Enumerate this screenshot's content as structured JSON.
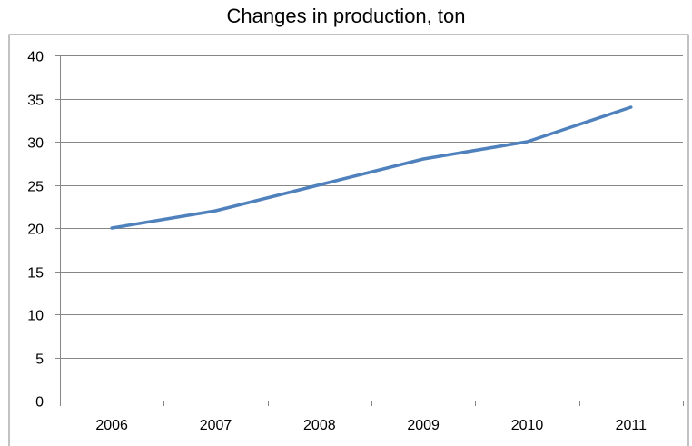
{
  "chart_data": {
    "type": "line",
    "title": "Changes in production, ton",
    "xlabel": "",
    "ylabel": "",
    "categories": [
      "2006",
      "2007",
      "2008",
      "2009",
      "2010",
      "2011"
    ],
    "series": [
      {
        "values": [
          20,
          22,
          25,
          28,
          30,
          34
        ],
        "color": "#4f81bd"
      }
    ],
    "ylim": [
      0,
      40
    ],
    "yticks": [
      0,
      5,
      10,
      15,
      20,
      25,
      30,
      35,
      40
    ],
    "grid": true,
    "legend": "none"
  }
}
